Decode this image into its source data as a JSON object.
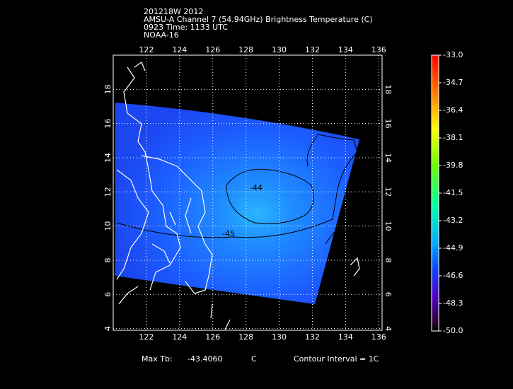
{
  "header": {
    "lines": [
      "201218W 2012",
      "AMSU-A Channel 7 (54.94GHz) Brightness Temperature (C)",
      "0923 Time: 1133 UTC",
      "NOAA-16"
    ]
  },
  "map": {
    "lon_lim": [
      120,
      136.2
    ],
    "lat_lim": [
      3.9,
      20
    ],
    "lon_ticks": [
      122,
      124,
      126,
      128,
      130,
      132,
      134,
      136
    ],
    "lat_ticks": [
      4,
      6,
      8,
      10,
      12,
      14,
      16,
      18
    ],
    "contour_labels": [
      "-44",
      "-45"
    ]
  },
  "colorbar": {
    "labels": [
      "-33.0",
      "-34.7",
      "-36.4",
      "-38.1",
      "-39.8",
      "-41.5",
      "-43.2",
      "-44.9",
      "-46.6",
      "-48.3",
      "-50.0"
    ]
  },
  "footer": {
    "max_label": "Max Tb:",
    "max_value": "-43.4060",
    "max_unit": "C",
    "contour_interval": "Contour Interval = 1C"
  }
}
